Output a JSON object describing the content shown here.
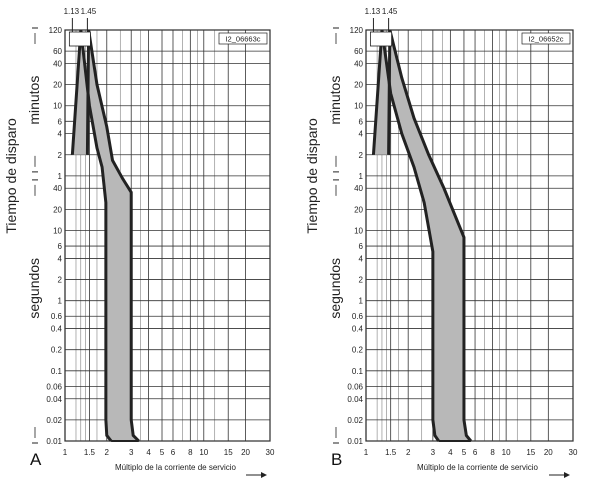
{
  "chart_data": [
    {
      "type": "area",
      "panel_label": "A",
      "code": "I2_06663c",
      "xlabel": "Múltiplo de la corriente de servicio",
      "ylabel_main": "Tiempo de disparo",
      "ylabel_upper": "minutos",
      "ylabel_lower": "segundos",
      "x_scale": "log",
      "xlim": [
        1,
        30
      ],
      "x_ticks": [
        1,
        1.5,
        2,
        3,
        4,
        5,
        6,
        8,
        10,
        15,
        20,
        30
      ],
      "x_tick_labels": [
        "1",
        "1.5",
        "2",
        "3",
        "4",
        "5",
        "6",
        "8",
        "10",
        "15",
        "20",
        "30"
      ],
      "markers": {
        "values": [
          1.13,
          1.45
        ],
        "labels": [
          "1.13",
          "1.45"
        ]
      },
      "y_scale": "log",
      "y_unit_note": "upper axis in minutes, lower axis in seconds",
      "y_ticks_minutes": [
        1,
        2,
        4,
        6,
        10,
        20,
        40,
        60,
        120
      ],
      "y_ticks_minutes_labels": [
        "1",
        "2",
        "4",
        "6",
        "10",
        "20",
        "40",
        "60",
        "120"
      ],
      "y_ticks_seconds": [
        0.01,
        0.02,
        0.04,
        0.06,
        0.1,
        0.2,
        0.4,
        0.6,
        1,
        2,
        4,
        6,
        10,
        20,
        40
      ],
      "y_ticks_seconds_labels": [
        "0.01",
        "0.02",
        "0.04",
        "0.06",
        "0.1",
        "0.2",
        "0.4",
        "0.6",
        "1",
        "2",
        "4",
        "6",
        "10",
        "20",
        "40"
      ],
      "grid": true,
      "band": {
        "lower": [
          [
            1.13,
            120
          ],
          [
            1.3,
            7200
          ],
          [
            1.5,
            600
          ],
          [
            1.7,
            150
          ],
          [
            1.85,
            80
          ],
          [
            1.97,
            25
          ],
          [
            1.97,
            0.02
          ],
          [
            2.0,
            0.012
          ],
          [
            2.15,
            0.01
          ]
        ],
        "upper": [
          [
            1.45,
            120
          ],
          [
            1.48,
            7200
          ],
          [
            1.7,
            1200
          ],
          [
            2.0,
            300
          ],
          [
            2.2,
            100
          ],
          [
            2.6,
            55
          ],
          [
            3.0,
            35
          ],
          [
            3.0,
            0.02
          ],
          [
            3.1,
            0.012
          ],
          [
            3.4,
            0.01
          ]
        ]
      }
    },
    {
      "type": "area",
      "panel_label": "B",
      "code": "I2_06652c",
      "xlabel": "Múltiplo de la corriente de servicio",
      "ylabel_main": "Tiempo de disparo",
      "ylabel_upper": "minutos",
      "ylabel_lower": "segundos",
      "x_scale": "log",
      "xlim": [
        1,
        30
      ],
      "x_ticks": [
        1,
        1.5,
        2,
        3,
        4,
        5,
        6,
        8,
        10,
        15,
        20,
        30
      ],
      "x_tick_labels": [
        "1",
        "1.5",
        "2",
        "3",
        "4",
        "5",
        "6",
        "8",
        "10",
        "15",
        "20",
        "30"
      ],
      "markers": {
        "values": [
          1.13,
          1.45
        ],
        "labels": [
          "1.13",
          "1.45"
        ]
      },
      "y_scale": "log",
      "y_unit_note": "upper axis in minutes, lower axis in seconds",
      "y_ticks_minutes": [
        1,
        2,
        4,
        6,
        10,
        20,
        40,
        60,
        120
      ],
      "y_ticks_minutes_labels": [
        "1",
        "2",
        "4",
        "6",
        "10",
        "20",
        "40",
        "60",
        "120"
      ],
      "y_ticks_seconds": [
        0.01,
        0.02,
        0.04,
        0.06,
        0.1,
        0.2,
        0.4,
        0.6,
        1,
        2,
        4,
        6,
        10,
        20,
        40
      ],
      "y_ticks_seconds_labels": [
        "0.01",
        "0.02",
        "0.04",
        "0.06",
        "0.1",
        "0.2",
        "0.4",
        "0.6",
        "1",
        "2",
        "4",
        "6",
        "10",
        "20",
        "40"
      ],
      "grid": true,
      "band": {
        "lower": [
          [
            1.13,
            120
          ],
          [
            1.3,
            7200
          ],
          [
            1.5,
            900
          ],
          [
            1.8,
            240
          ],
          [
            2.2,
            80
          ],
          [
            2.6,
            25
          ],
          [
            3.0,
            5
          ],
          [
            3.0,
            0.02
          ],
          [
            3.1,
            0.012
          ],
          [
            3.3,
            0.01
          ]
        ],
        "upper": [
          [
            1.45,
            120
          ],
          [
            1.48,
            7200
          ],
          [
            1.8,
            1500
          ],
          [
            2.2,
            400
          ],
          [
            2.8,
            120
          ],
          [
            3.6,
            40
          ],
          [
            5.0,
            8
          ],
          [
            5.0,
            0.02
          ],
          [
            5.2,
            0.012
          ],
          [
            5.6,
            0.01
          ]
        ]
      }
    }
  ]
}
